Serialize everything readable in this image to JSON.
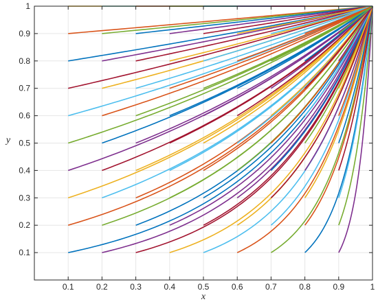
{
  "chart_data": {
    "type": "line",
    "title": "",
    "xlabel": "x",
    "ylabel": "y",
    "xlim": [
      0,
      1
    ],
    "ylim": [
      0,
      1
    ],
    "grid": true,
    "legend": "none",
    "x_ticks": [
      "0.1",
      "0.2",
      "0.3",
      "0.4",
      "0.5",
      "0.6",
      "0.7",
      "0.8",
      "0.9",
      "1"
    ],
    "y_ticks": [
      "0.1",
      "0.2",
      "0.3",
      "0.4",
      "0.5",
      "0.6",
      "0.7",
      "0.8",
      "0.9",
      "1"
    ],
    "color_cycle": [
      "#0072BD",
      "#D95319",
      "#EDB120",
      "#7E2F8E",
      "#77AC30",
      "#4DBEEE",
      "#A2142F"
    ],
    "series_description": "Family of curves y(x) starting at each grid point (x0, y0) with x0, y0 in {0.1,...,0.9, 1} and rising to y = 1 at x = 1; form y = y0^((1-x)/(1-x0)).",
    "start_x": [
      0.1,
      0.2,
      0.3,
      0.4,
      0.5,
      0.6,
      0.7,
      0.8,
      0.9
    ],
    "start_y": [
      0.1,
      0.2,
      0.3,
      0.4,
      0.5,
      0.6,
      0.7,
      0.8,
      0.9,
      1.0
    ],
    "end_point": [
      1,
      1
    ]
  }
}
